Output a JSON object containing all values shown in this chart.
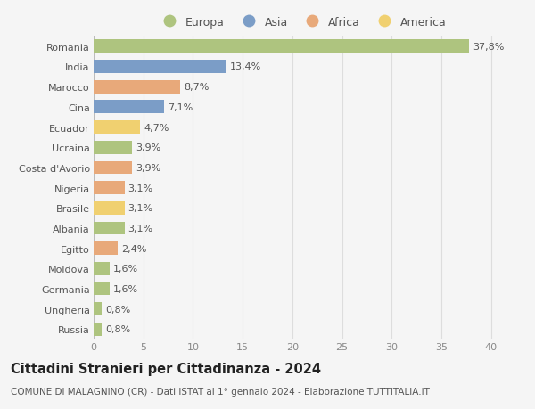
{
  "countries": [
    "Romania",
    "India",
    "Marocco",
    "Cina",
    "Ecuador",
    "Ucraina",
    "Costa d'Avorio",
    "Nigeria",
    "Brasile",
    "Albania",
    "Egitto",
    "Moldova",
    "Germania",
    "Ungheria",
    "Russia"
  ],
  "values": [
    37.8,
    13.4,
    8.7,
    7.1,
    4.7,
    3.9,
    3.9,
    3.1,
    3.1,
    3.1,
    2.4,
    1.6,
    1.6,
    0.8,
    0.8
  ],
  "labels": [
    "37,8%",
    "13,4%",
    "8,7%",
    "7,1%",
    "4,7%",
    "3,9%",
    "3,9%",
    "3,1%",
    "3,1%",
    "3,1%",
    "2,4%",
    "1,6%",
    "1,6%",
    "0,8%",
    "0,8%"
  ],
  "continents": [
    "Europa",
    "Asia",
    "Africa",
    "Asia",
    "America",
    "Europa",
    "Africa",
    "Africa",
    "America",
    "Europa",
    "Africa",
    "Europa",
    "Europa",
    "Europa",
    "Europa"
  ],
  "colors": {
    "Europa": "#aec47f",
    "Asia": "#7b9dc7",
    "Africa": "#e8a97a",
    "America": "#f0d070"
  },
  "legend_order": [
    "Europa",
    "Asia",
    "Africa",
    "America"
  ],
  "title": "Cittadini Stranieri per Cittadinanza - 2024",
  "subtitle": "COMUNE DI MALAGNINO (CR) - Dati ISTAT al 1° gennaio 2024 - Elaborazione TUTTITALIA.IT",
  "xlim": [
    0,
    42
  ],
  "xticks": [
    0,
    5,
    10,
    15,
    20,
    25,
    30,
    35,
    40
  ],
  "background_color": "#f5f5f5",
  "grid_color": "#dddddd",
  "bar_height": 0.65,
  "label_fontsize": 8,
  "tick_fontsize": 8,
  "title_fontsize": 10.5,
  "subtitle_fontsize": 7.5,
  "legend_fontsize": 9
}
